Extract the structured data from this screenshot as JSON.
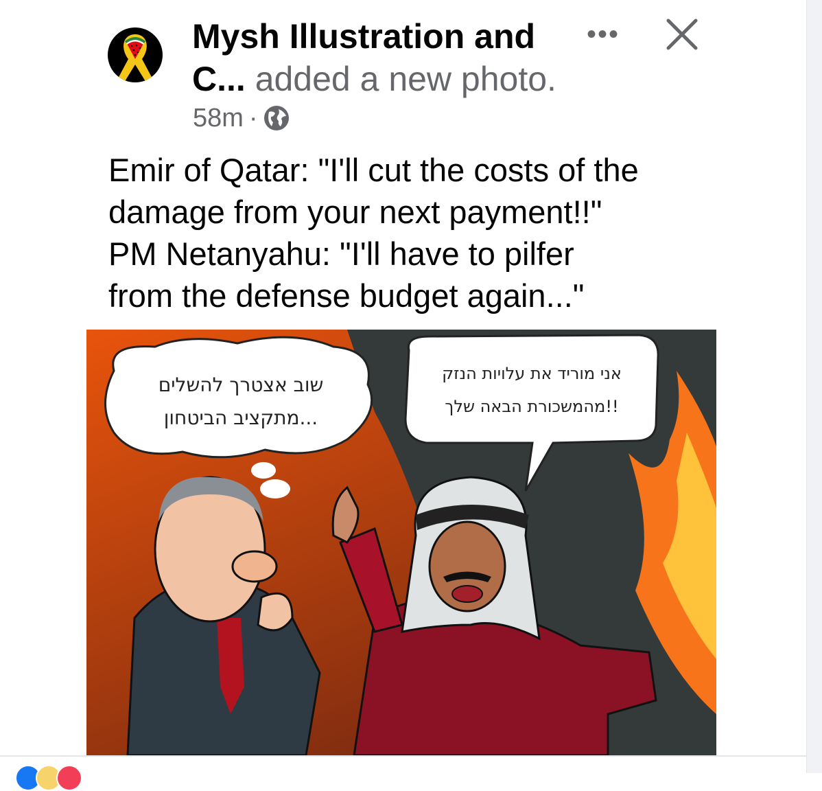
{
  "post": {
    "page_name_line1": "Mysh Illustration and",
    "page_name_line2": "C...",
    "action": " added a new photo.",
    "time": "58m",
    "separator": "·",
    "privacy_icon": "globe-icon",
    "more_icon": "more-dots-icon",
    "close_icon": "close-icon",
    "more_label": "•••",
    "caption_lines": [
      "Emir of Qatar: \"I'll cut the costs of the",
      "damage from your next payment!!\"",
      "PM Netanyahu: \"I'll have to pilfer",
      "from the defense budget again...\""
    ]
  },
  "photo": {
    "left_bubble": [
      "שוב אצטרך להשלים",
      "מתקציב הביטחון..."
    ],
    "right_bubble": [
      "אני מוריד את עלויות הנזק",
      "מהמשכורת הבאה שלך!!"
    ]
  },
  "reactions": [
    "like",
    "care",
    "love"
  ],
  "colors": {
    "like": "#1877f2",
    "care": "#f7d36b",
    "love": "#f33e58",
    "text_secondary": "#65676b"
  }
}
